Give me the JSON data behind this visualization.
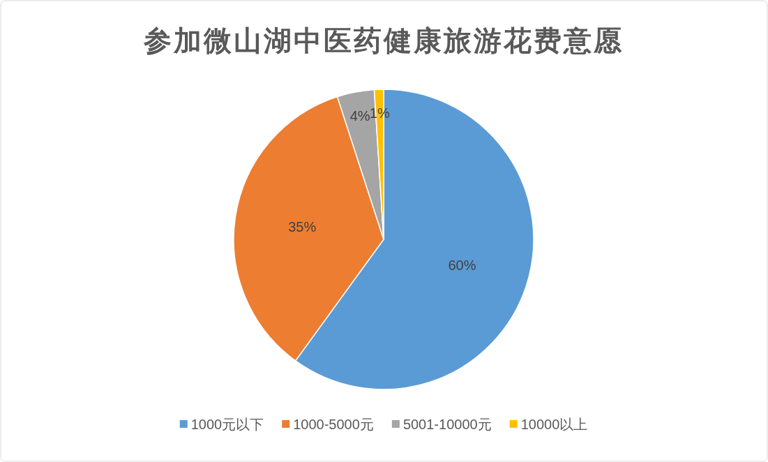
{
  "chart_data": {
    "type": "pie",
    "title": "参加微山湖中医药健康旅游花费意愿",
    "categories": [
      "1000元以下",
      "1000-5000元",
      "5001-10000元",
      "10000以上"
    ],
    "values": [
      60,
      35,
      4,
      1
    ],
    "colors": [
      "#5b9bd5",
      "#ed7d31",
      "#a5a5a5",
      "#ffc000"
    ],
    "value_labels": [
      "60%",
      "35%",
      "4%",
      "1%"
    ],
    "legend": "bottom"
  }
}
